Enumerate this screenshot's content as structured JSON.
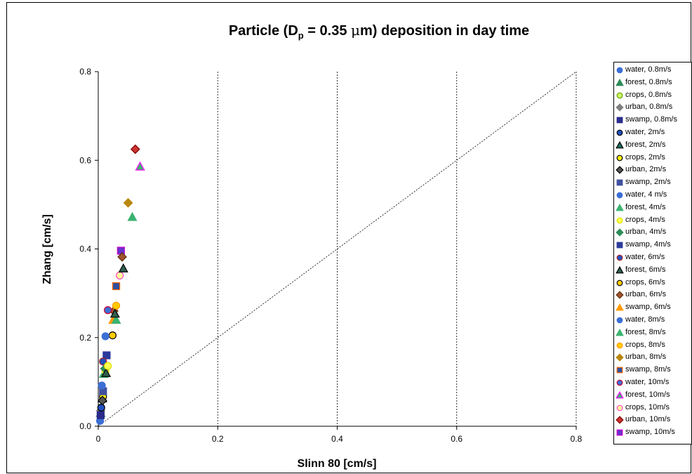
{
  "chart_data": {
    "type": "scatter",
    "title_main": "Particle (D",
    "title_sub": "p",
    "title_rest": " = 0.35 ",
    "title_mu": "μ",
    "title_end": "m) deposition in day time",
    "xlabel": "Slinn 80 [cm/s]",
    "ylabel": "Zhang [cm/s]",
    "xlim": [
      0,
      0.8
    ],
    "ylim": [
      0,
      0.8
    ],
    "xticks": [
      "0",
      "0.2",
      "0.4",
      "0.6",
      "0.8"
    ],
    "yticks": [
      "0.0",
      "0.2",
      "0.4",
      "0.6",
      "0.8"
    ],
    "xtick_values": [
      0,
      0.2,
      0.4,
      0.6,
      0.8
    ],
    "ytick_values": [
      0,
      0.2,
      0.4,
      0.6,
      0.8
    ],
    "grid": "vertical dashed",
    "reference_line": "1:1",
    "legend_placement": "right",
    "series": [
      {
        "name": "water, 0.8m/s",
        "marker": "circle",
        "fill": "#3b6fd4",
        "stroke": "#3b6fd4",
        "x": [
          0.003
        ],
        "y": [
          0.012
        ]
      },
      {
        "name": "forest, 0.8m/s",
        "marker": "triangle",
        "fill": "#2e8b57",
        "stroke": "#2e8b57",
        "x": [
          0.004
        ],
        "y": [
          0.03
        ]
      },
      {
        "name": "crops, 0.8m/s",
        "marker": "circle",
        "fill": "#ccff66",
        "stroke": "#669900",
        "x": [
          0.004
        ],
        "y": [
          0.028
        ]
      },
      {
        "name": "urban, 0.8m/s",
        "marker": "diamond",
        "fill": "#808080",
        "stroke": "#808080",
        "x": [
          0.004
        ],
        "y": [
          0.035
        ]
      },
      {
        "name": "swamp, 0.8m/s",
        "marker": "square",
        "fill": "#2b2b8c",
        "stroke": "#2b2b8c",
        "x": [
          0.004
        ],
        "y": [
          0.025
        ]
      },
      {
        "name": "water, 2m/s",
        "marker": "circle",
        "fill": "#2050c0",
        "stroke": "#000000",
        "x": [
          0.005
        ],
        "y": [
          0.042
        ]
      },
      {
        "name": "forest, 2m/s",
        "marker": "triangle",
        "fill": "#1f6f5f",
        "stroke": "#000000",
        "x": [
          0.007
        ],
        "y": [
          0.063
        ]
      },
      {
        "name": "crops, 2m/s",
        "marker": "circle",
        "fill": "#ffee00",
        "stroke": "#000000",
        "x": [
          0.008
        ],
        "y": [
          0.067
        ]
      },
      {
        "name": "urban, 2m/s",
        "marker": "diamond",
        "fill": "#555555",
        "stroke": "#000000",
        "x": [
          0.007
        ],
        "y": [
          0.058
        ]
      },
      {
        "name": "swamp, 2m/s",
        "marker": "square",
        "fill": "#4050a0",
        "stroke": "#4050a0",
        "x": [
          0.008
        ],
        "y": [
          0.079
        ]
      },
      {
        "name": "water, 4 m/s",
        "marker": "circle",
        "fill": "#3b6fd4",
        "stroke": "#3b6fd4",
        "x": [
          0.006
        ],
        "y": [
          0.092
        ]
      },
      {
        "name": "forest, 4m/s",
        "marker": "triangle",
        "fill": "#3cb371",
        "stroke": "#3cb371",
        "x": [
          0.009
        ],
        "y": [
          0.118
        ]
      },
      {
        "name": "crops, 4m/s",
        "marker": "circle",
        "fill": "#ffff55",
        "stroke": "#dddd00",
        "x": [
          0.012
        ],
        "y": [
          0.125
        ]
      },
      {
        "name": "urban, 4m/s",
        "marker": "diamond",
        "fill": "#2e8b57",
        "stroke": "#2e8b57",
        "x": [
          0.011
        ],
        "y": [
          0.13
        ]
      },
      {
        "name": "swamp, 4m/s",
        "marker": "square",
        "fill": "#2b3a9c",
        "stroke": "#2b3a9c",
        "x": [
          0.014
        ],
        "y": [
          0.16
        ]
      },
      {
        "name": "water, 6m/s",
        "marker": "circle",
        "fill": "#2050c0",
        "stroke": "#b02020",
        "x": [
          0.008
        ],
        "y": [
          0.146
        ]
      },
      {
        "name": "forest, 6m/s",
        "marker": "triangle",
        "fill": "#2f5f4f",
        "stroke": "#000000",
        "x": [
          0.013
        ],
        "y": [
          0.12
        ]
      },
      {
        "name": "crops, 6m/s",
        "marker": "circle",
        "fill": "#ffcc00",
        "stroke": "#000000",
        "x": [
          0.024
        ],
        "y": [
          0.205
        ]
      },
      {
        "name": "urban, 6m/s",
        "marker": "diamond",
        "fill": "#a0522d",
        "stroke": "#603010",
        "x": [
          0.026
        ],
        "y": [
          0.26
        ]
      },
      {
        "name": "swamp, 6m/s",
        "marker": "triangle",
        "fill": "#ff9900",
        "stroke": "#ff9900",
        "x": [
          0.025
        ],
        "y": [
          0.24
        ]
      },
      {
        "name": "water, 8m/s",
        "marker": "circle",
        "fill": "#3b6fd4",
        "stroke": "#3b6fd4",
        "x": [
          0.012
        ],
        "y": [
          0.203
        ]
      },
      {
        "name": "forest, 8m/s",
        "marker": "triangle",
        "fill": "#3cb371",
        "stroke": "#3cb371",
        "x": [
          0.03
        ],
        "y": [
          0.24
        ]
      },
      {
        "name": "crops, 8m/s",
        "marker": "circle",
        "fill": "#ffcc00",
        "stroke": "#ff9900",
        "x": [
          0.03
        ],
        "y": [
          0.272
        ]
      },
      {
        "name": "urban, 8m/s",
        "marker": "diamond",
        "fill": "#b8860b",
        "stroke": "#b8860b",
        "x": [
          0.05
        ],
        "y": [
          0.504
        ]
      },
      {
        "name": "swamp, 8m/s",
        "marker": "square",
        "fill": "#3050a0",
        "stroke": "#ff6600",
        "x": [
          0.03
        ],
        "y": [
          0.316
        ]
      },
      {
        "name": "water, 10m/s",
        "marker": "circle",
        "fill": "#3b6fd4",
        "stroke": "#cc0033",
        "x": [
          0.016
        ],
        "y": [
          0.262
        ]
      },
      {
        "name": "forest, 10m/s",
        "marker": "triangle",
        "fill": "#3cb371",
        "stroke": "#ff00ff",
        "x": [
          0.07
        ],
        "y": [
          0.586
        ]
      },
      {
        "name": "crops, 10m/s",
        "marker": "circle",
        "fill": "#ffff99",
        "stroke": "#ff44cc",
        "x": [
          0.036
        ],
        "y": [
          0.34
        ]
      },
      {
        "name": "urban, 10m/s",
        "marker": "diamond",
        "fill": "#cc3333",
        "stroke": "#800000",
        "x": [
          0.062
        ],
        "y": [
          0.625
        ]
      },
      {
        "name": "swamp, 10m/s",
        "marker": "square",
        "fill": "#6633cc",
        "stroke": "#cc00cc",
        "x": [
          0.038
        ],
        "y": [
          0.396
        ]
      }
    ],
    "extra_points": [
      {
        "series": "urban, 6m/s",
        "x": 0.04,
        "y": 0.382
      },
      {
        "series": "forest, 6m/s",
        "x": 0.042,
        "y": 0.356
      },
      {
        "series": "forest, 8m/s",
        "x": 0.057,
        "y": 0.472
      },
      {
        "series": "crops, 4m/s",
        "x": 0.016,
        "y": 0.136
      },
      {
        "series": "forest, 6m/s",
        "x": 0.028,
        "y": 0.254
      }
    ]
  }
}
